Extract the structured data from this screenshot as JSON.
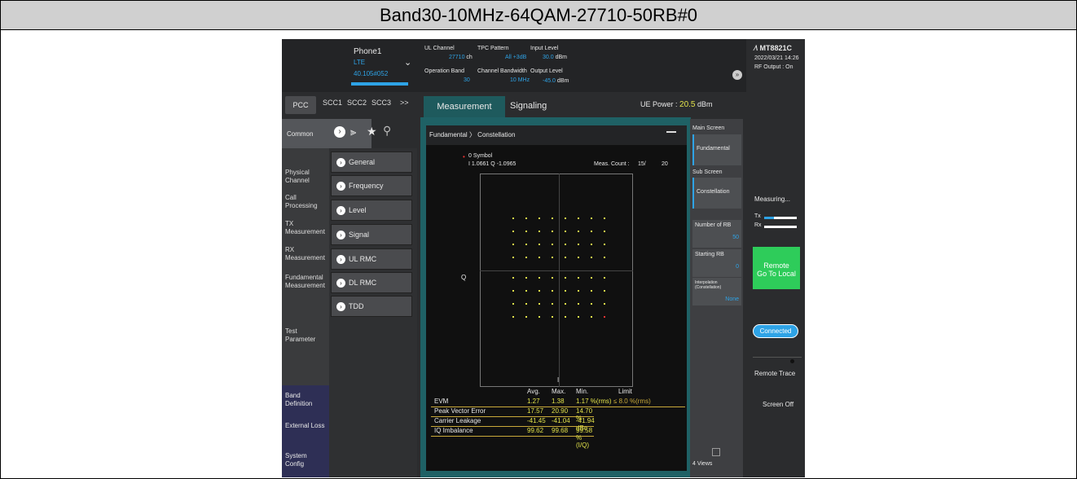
{
  "banner": {
    "title": "Band30-10MHz-64QAM-27710-50RB#0"
  },
  "header": {
    "phone": "Phone1",
    "tech": "LTE",
    "version": "40.105#052",
    "ul_channel_label": "UL Channel",
    "ul_channel_value": "27710",
    "ul_channel_unit": "ch",
    "tpc_label": "TPC Pattern",
    "tpc_value": "All +3dB",
    "input_level_label": "Input Level",
    "input_level_value": "30.0",
    "input_level_unit": "dBm",
    "op_band_label": "Operation Band",
    "op_band_value": "30",
    "ch_bw_label": "Channel Bandwidth",
    "ch_bw_value": "10 MHz",
    "output_level_label": "Output Level",
    "output_level_value": "-45.0",
    "output_level_unit": "dBm",
    "brand": "MT8821C",
    "datetime": "2022/03/21 14:26",
    "rf_output": "RF Output : On"
  },
  "carrier_tabs": [
    "PCC",
    "SCC1",
    "SCC2",
    "SCC3",
    ">>"
  ],
  "main_tabs": {
    "measurement": "Measurement",
    "signaling": "Signaling"
  },
  "ue_power": {
    "label": "UE Power :",
    "value": "20.5",
    "unit": "dBm"
  },
  "leftnav": {
    "common": "Common",
    "items": [
      "Physical Channel",
      "Call Processing",
      "TX Measurement",
      "RX Measurement",
      "Fundamental Measurement",
      "Test Parameter",
      "Band Definition",
      "External Loss",
      "System Config"
    ]
  },
  "menu": [
    "General",
    "Frequency",
    "Level",
    "Signal",
    "UL RMC",
    "DL RMC",
    "TDD"
  ],
  "plot": {
    "breadcrumb_1": "Fundamental",
    "breadcrumb_2": "Constellation",
    "symbol": "0 Symbol",
    "iq": "I 1.0661 Q -1.0965",
    "meas_count_label": "Meas. Count :",
    "meas_count": "15/",
    "meas_total": "20",
    "q_label": "Q",
    "i_label": "I"
  },
  "table": {
    "headers": [
      "",
      "Avg.",
      "Max.",
      "Min.",
      "Limit"
    ],
    "rows": [
      [
        "EVM",
        "1.27",
        "1.38",
        "1.17 %(rms)",
        "≤ 8.0 %(rms)"
      ],
      [
        "Peak Vector Error",
        "17.57",
        "20.90",
        "14.70 %",
        ""
      ],
      [
        "Carrier Leakage",
        "-41.45",
        "-41.04",
        "-41.94 dBc",
        ""
      ],
      [
        "IQ Imbalance",
        "99.62",
        "99.68",
        "99.58 %(I/Q)",
        ""
      ]
    ]
  },
  "rpanel": {
    "main_screen": "Main Screen",
    "fundamental": "Fundamental",
    "sub_screen": "Sub Screen",
    "constellation": "Constellation",
    "num_rb_label": "Number of RB",
    "num_rb_value": "50",
    "start_rb_label": "Starting RB",
    "start_rb_value": "0",
    "interp_label": "Interpolation (Constellation)",
    "interp_value": "None",
    "views": "4 Views"
  },
  "farright": {
    "measuring": "Measuring...",
    "tx": "Tx",
    "rx": "Rx",
    "remote": "Remote",
    "go_local": "Go To Local",
    "connected": "Connected",
    "remote_trace": "Remote Trace",
    "screen_off": "Screen Off"
  }
}
